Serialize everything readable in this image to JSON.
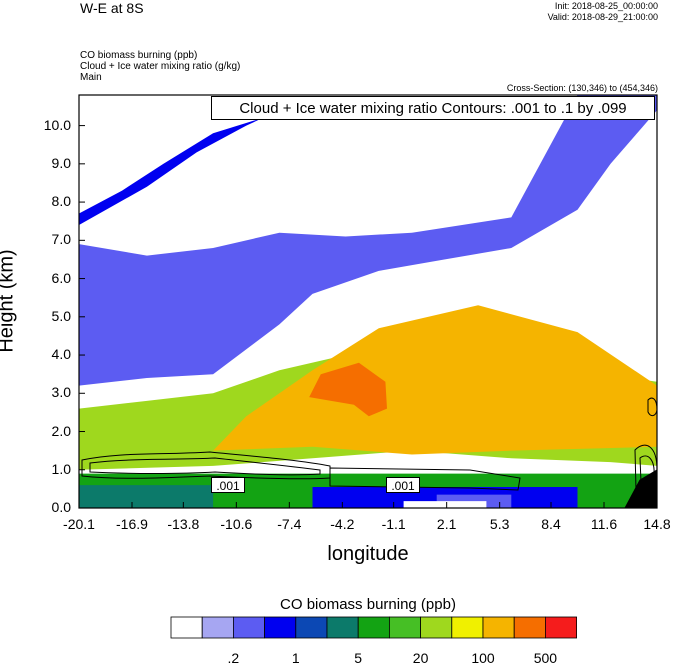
{
  "header": {
    "title": "W-E at 8S",
    "init": "Init: 2018-08-25_00:00:00",
    "valid": "Valid: 2018-08-29_21:00:00",
    "field1": "CO biomass burning   (ppb)",
    "field2": "Cloud + Ice water mixing ratio   (g/kg)",
    "field3": "Main",
    "cross_section": "Cross-Section: (130,346) to (454,346)"
  },
  "contour_info": "Cloud + Ice water mixing ratio Contours: .001 to .1 by .099",
  "contour_labels": [
    ".001",
    ".001"
  ],
  "colorbar": {
    "title": "CO biomass burning  (ppb)",
    "labels": [
      ".2",
      "1",
      "5",
      "20",
      "100",
      "500"
    ],
    "colors": [
      "#ffffff",
      "#a6a6f2",
      "#5c5cf2",
      "#0000f0",
      "#0c48b4",
      "#0c7a6a",
      "#13a313",
      "#46bf25",
      "#9fd81e",
      "#f0f000",
      "#f5b400",
      "#f56e00",
      "#f51c1c"
    ]
  },
  "chart_data": {
    "type": "heatmap",
    "xlabel": "longitude",
    "ylabel": "Height (km)",
    "xticks": [
      "-20.1",
      "-16.9",
      "-13.8",
      "-10.6",
      "-7.4",
      "-4.2",
      "-1.1",
      "2.1",
      "5.3",
      "8.4",
      "11.6",
      "14.8"
    ],
    "yticks": [
      "0.0",
      "1.0",
      "2.0",
      "3.0",
      "4.0",
      "5.0",
      "6.0",
      "7.0",
      "8.0",
      "9.0",
      "10.0"
    ],
    "xlim": [
      -20.1,
      14.8
    ],
    "ylim": [
      0.0,
      10.8
    ],
    "regions": [
      {
        "name": "boundary-layer",
        "level": 6,
        "pts": [
          [
            -20.1,
            0
          ],
          [
            14.8,
            0
          ],
          [
            14.8,
            0.9
          ],
          [
            -20.1,
            0.9
          ]
        ]
      },
      {
        "name": "low-dark-green",
        "level": 5,
        "pts": [
          [
            -20.1,
            0
          ],
          [
            -12,
            0
          ],
          [
            -12,
            0.6
          ],
          [
            -20.1,
            0.6
          ]
        ]
      },
      {
        "name": "dark-blue-gap",
        "level": 3,
        "pts": [
          [
            -6,
            0
          ],
          [
            10,
            0
          ],
          [
            10,
            0.55
          ],
          [
            -6,
            0.55
          ]
        ]
      },
      {
        "name": "blue-gap",
        "level": 2,
        "pts": [
          [
            1.5,
            0
          ],
          [
            6,
            0
          ],
          [
            6,
            0.35
          ],
          [
            1.5,
            0.35
          ]
        ]
      },
      {
        "name": "white-gap",
        "level": 0,
        "pts": [
          [
            -0.5,
            0
          ],
          [
            4.5,
            0
          ],
          [
            4.5,
            0.18
          ],
          [
            -0.5,
            0.18
          ]
        ]
      },
      {
        "name": "yellow-green-base",
        "level": 8,
        "pts": [
          [
            -20.1,
            1.0
          ],
          [
            -12,
            1.1
          ],
          [
            -6,
            1.3
          ],
          [
            0,
            1.5
          ],
          [
            6,
            1.3
          ],
          [
            12,
            1.2
          ],
          [
            14.8,
            1.1
          ],
          [
            14.8,
            3.3
          ],
          [
            10,
            3.6
          ],
          [
            4,
            4.4
          ],
          [
            -4,
            4.0
          ],
          [
            -8,
            3.6
          ],
          [
            -12,
            3.0
          ],
          [
            -16,
            2.8
          ],
          [
            -20.1,
            2.6
          ]
        ]
      },
      {
        "name": "orange-plume",
        "level": 10,
        "pts": [
          [
            -12,
            1.5
          ],
          [
            -6,
            1.6
          ],
          [
            0,
            1.4
          ],
          [
            6,
            1.5
          ],
          [
            14.8,
            1.6
          ],
          [
            14.8,
            3.2
          ],
          [
            10,
            4.6
          ],
          [
            4,
            5.3
          ],
          [
            -2,
            4.7
          ],
          [
            -6,
            3.6
          ],
          [
            -10,
            2.4
          ]
        ]
      },
      {
        "name": "red-core",
        "level": 11,
        "pts": [
          [
            -6.2,
            2.9
          ],
          [
            -3.5,
            2.7
          ],
          [
            -2.6,
            2.4
          ],
          [
            -1.5,
            2.6
          ],
          [
            -1.6,
            3.3
          ],
          [
            -3.2,
            3.8
          ],
          [
            -5.5,
            3.5
          ]
        ]
      },
      {
        "name": "upper-white",
        "level": 0,
        "pts": [
          [
            -20.1,
            7.0
          ],
          [
            -17,
            7.4
          ],
          [
            -13.8,
            7.8
          ],
          [
            -10.6,
            8.3
          ],
          [
            -8,
            8.6
          ],
          [
            -5,
            9.2
          ],
          [
            -3,
            9.6
          ],
          [
            -1,
            9.7
          ],
          [
            2,
            9.5
          ],
          [
            5,
            9.6
          ],
          [
            7,
            10.2
          ],
          [
            9,
            10.8
          ],
          [
            -10,
            10.8
          ],
          [
            -14,
            10.0
          ],
          [
            -17,
            9.0
          ],
          [
            -20.1,
            8.1
          ]
        ]
      },
      {
        "name": "mid-blue-strip",
        "level": 2,
        "pts": [
          [
            -20.1,
            3.2
          ],
          [
            -16,
            3.4
          ],
          [
            -12,
            3.5
          ],
          [
            -8,
            4.8
          ],
          [
            -6,
            5.6
          ],
          [
            -2,
            6.2
          ],
          [
            2,
            6.5
          ],
          [
            6,
            6.8
          ],
          [
            10,
            7.8
          ],
          [
            12,
            9.0
          ],
          [
            14.8,
            10.4
          ],
          [
            14.8,
            10.8
          ],
          [
            10,
            10.8
          ],
          [
            6,
            7.6
          ],
          [
            0,
            7.2
          ],
          [
            -4,
            7.1
          ],
          [
            -8,
            7.2
          ],
          [
            -12,
            6.8
          ],
          [
            -16,
            6.6
          ],
          [
            -20.1,
            6.9
          ]
        ]
      },
      {
        "name": "upper-dark-blue-band",
        "level": 3,
        "pts": [
          [
            -20.1,
            7.7
          ],
          [
            -17.5,
            8.3
          ],
          [
            -15,
            9.0
          ],
          [
            -12,
            9.8
          ],
          [
            -9,
            10.2
          ],
          [
            -8,
            10.4
          ],
          [
            -10,
            10.0
          ],
          [
            -13,
            9.3
          ],
          [
            -16,
            8.4
          ],
          [
            -20.1,
            7.4
          ]
        ]
      }
    ]
  }
}
